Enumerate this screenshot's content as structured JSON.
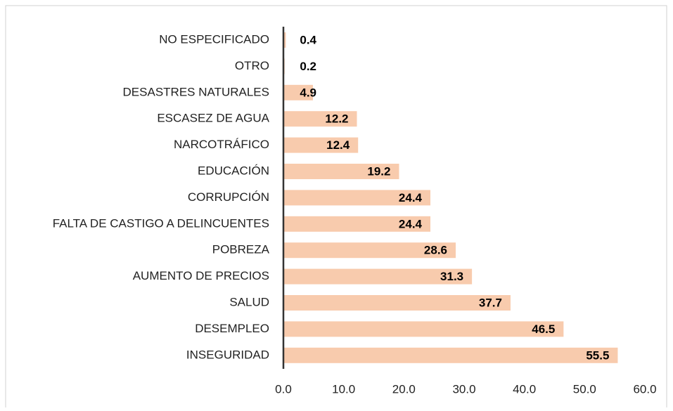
{
  "chart_data": {
    "type": "bar",
    "orientation": "horizontal",
    "categories": [
      "NO ESPECIFICADO",
      "OTRO",
      "DESASTRES NATURALES",
      "ESCASEZ DE AGUA",
      "NARCOTRÁFICO",
      "EDUCACIÓN",
      "CORRUPCIÓN",
      "FALTA DE CASTIGO A DELINCUENTES",
      "POBREZA",
      "AUMENTO DE PRECIOS",
      "SALUD",
      "DESEMPLEO",
      "INSEGURIDAD"
    ],
    "values": [
      0.4,
      0.2,
      4.9,
      12.2,
      12.4,
      19.2,
      24.4,
      24.4,
      28.6,
      31.3,
      37.7,
      46.5,
      55.5
    ],
    "color": "#f8cbad",
    "xlim": [
      0,
      60
    ],
    "xticks": [
      {
        "value": 0,
        "label": "0.0"
      },
      {
        "value": 10,
        "label": "10.0"
      },
      {
        "value": 20,
        "label": "20.0"
      },
      {
        "value": 30,
        "label": "30.0"
      },
      {
        "value": 40,
        "label": "40.0"
      },
      {
        "value": 50,
        "label": "50.0"
      },
      {
        "value": 60,
        "label": "60.0"
      }
    ],
    "grid": false
  }
}
